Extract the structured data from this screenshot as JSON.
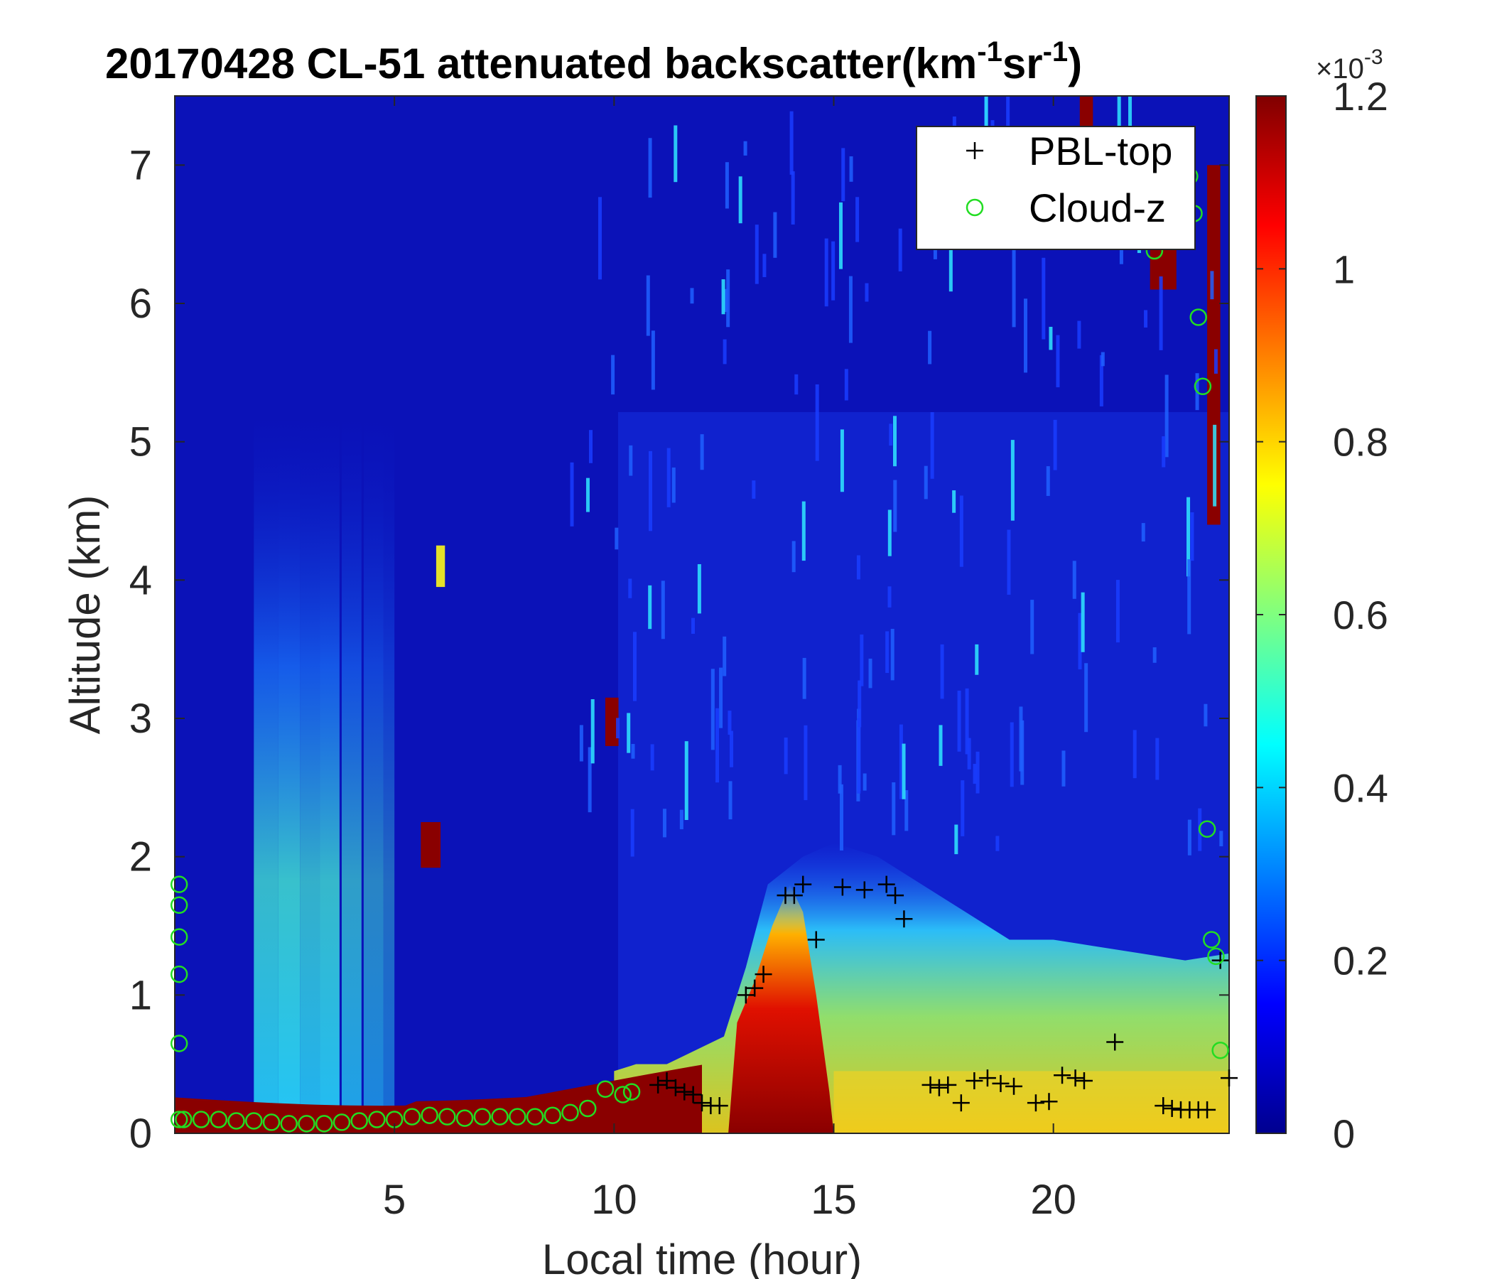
{
  "chart_data": {
    "type": "heatmap",
    "title": "20170428  CL-51 attenuated backscatter(km-1sr-1)",
    "title_parts": {
      "date": "20170428",
      "main": "CL-51 attenuated backscatter(km",
      "exp1": "-1",
      "mid": "sr",
      "exp2": "-1",
      "end": ")"
    },
    "xlabel": "Local time (hour)",
    "ylabel": "Altitude (km)",
    "xlim": [
      0,
      24
    ],
    "ylim": [
      0,
      7.5
    ],
    "xticks": [
      5,
      10,
      15,
      20
    ],
    "yticks": [
      0,
      1,
      2,
      3,
      4,
      5,
      6,
      7
    ],
    "colormap": "jet",
    "colorbar": {
      "clim": [
        0,
        0.0012
      ],
      "ticks": [
        "0",
        "0.2",
        "0.4",
        "0.6",
        "0.8",
        "1",
        "1.2"
      ],
      "tick_values": [
        0,
        0.2,
        0.4,
        0.6,
        0.8,
        1.0,
        1.2
      ],
      "multiplier": "×10",
      "multiplier_exp": "-3"
    },
    "legend": {
      "placement": "top-right",
      "entries": [
        {
          "name": "PBL-top",
          "marker": "+",
          "color": "#000000"
        },
        {
          "name": "Cloud-z",
          "marker": "o",
          "color": "#22dd22"
        }
      ]
    },
    "series": [
      {
        "name": "PBL-top",
        "x": [
          11.0,
          11.2,
          11.4,
          11.6,
          11.8,
          12.0,
          12.2,
          12.4,
          13.0,
          13.2,
          13.4,
          13.9,
          14.1,
          14.3,
          14.6,
          15.2,
          15.7,
          16.2,
          16.4,
          16.6,
          17.2,
          17.4,
          17.6,
          17.9,
          18.2,
          18.5,
          18.8,
          19.1,
          19.6,
          19.9,
          20.2,
          20.5,
          20.7,
          21.4,
          22.5,
          22.7,
          22.9,
          23.1,
          23.3,
          23.5,
          23.8,
          24.0
        ],
        "y": [
          0.35,
          0.38,
          0.33,
          0.3,
          0.28,
          0.22,
          0.2,
          0.2,
          1.0,
          1.05,
          1.15,
          1.72,
          1.72,
          1.8,
          1.4,
          1.78,
          1.76,
          1.8,
          1.72,
          1.55,
          0.35,
          0.33,
          0.35,
          0.22,
          0.38,
          0.4,
          0.36,
          0.34,
          0.22,
          0.23,
          0.42,
          0.4,
          0.38,
          0.66,
          0.2,
          0.18,
          0.17,
          0.17,
          0.17,
          0.17,
          1.25,
          0.4
        ]
      },
      {
        "name": "Cloud-z",
        "x": [
          0.2,
          0.6,
          1.0,
          1.4,
          1.8,
          2.2,
          2.6,
          3.0,
          3.4,
          3.8,
          4.2,
          4.6,
          5.0,
          5.4,
          5.8,
          6.2,
          6.6,
          7.0,
          7.4,
          7.8,
          8.2,
          8.6,
          9.0,
          9.4,
          9.8,
          10.2,
          10.4,
          22.3,
          23.1,
          23.2,
          23.3,
          23.4,
          23.5,
          23.6,
          23.7,
          23.8,
          0.1,
          0.1,
          0.1,
          0.1,
          0.1,
          0.1
        ],
        "y": [
          0.1,
          0.1,
          0.1,
          0.09,
          0.09,
          0.08,
          0.07,
          0.07,
          0.07,
          0.08,
          0.09,
          0.1,
          0.1,
          0.12,
          0.13,
          0.12,
          0.11,
          0.12,
          0.12,
          0.12,
          0.12,
          0.13,
          0.15,
          0.18,
          0.32,
          0.28,
          0.3,
          6.38,
          6.92,
          6.65,
          5.9,
          5.4,
          2.2,
          1.4,
          1.28,
          0.6,
          0.65,
          1.15,
          1.42,
          1.65,
          1.8,
          0.1
        ]
      }
    ]
  }
}
